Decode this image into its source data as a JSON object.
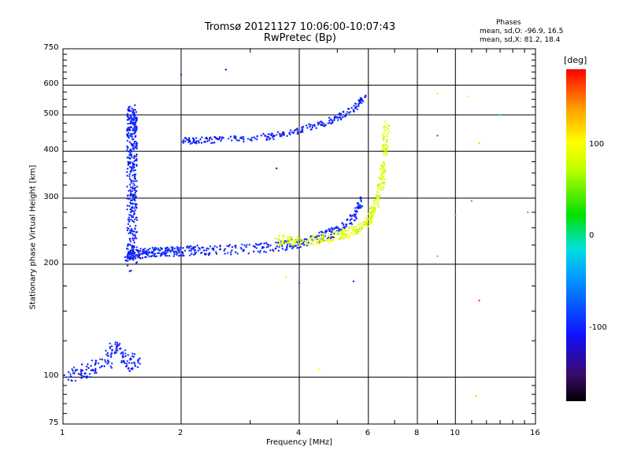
{
  "chart_data": {
    "type": "scatter",
    "title": "Tromsø 20121127 10:06:00-10:07:43",
    "subtitle": "RwPretec (Bp)",
    "xlabel": "Frequency [MHz]",
    "ylabel": "Stationary phase Virtual Height [km]",
    "x_scale": "log",
    "y_scale": "log",
    "xlim": [
      1,
      16
    ],
    "ylim": [
      75,
      750
    ],
    "x_ticks": [
      "1",
      "2",
      "4",
      "6",
      "8",
      "10",
      "16"
    ],
    "y_ticks": [
      "75",
      "100",
      "200",
      "300",
      "400",
      "500",
      "600",
      "750"
    ],
    "grid": true,
    "stats": {
      "heading": "Phases",
      "o_line": "mean, sd,O: -96.9, 16.5",
      "x_line": "mean, sd,X: 81.2, 18.4"
    },
    "colorbar": {
      "label": "[deg]",
      "range": [
        -180,
        180
      ],
      "ticks": [
        "100",
        "0",
        "-100"
      ]
    },
    "o_trace": {
      "phase": -100,
      "x": [
        1.45,
        1.5,
        1.6,
        1.7,
        1.8,
        1.9,
        2.0,
        2.2,
        2.5,
        3.0,
        3.5,
        4.0,
        4.5,
        5.0,
        5.5,
        5.8
      ],
      "y": [
        210,
        212,
        214,
        215,
        216,
        216,
        217,
        218,
        218,
        220,
        223,
        228,
        236,
        245,
        265,
        300
      ]
    },
    "o_upper_trace": {
      "phase": -100,
      "x": [
        2.0,
        2.2,
        2.5,
        3.0,
        3.5,
        4.0,
        4.5,
        5.0,
        5.5,
        5.9
      ],
      "y": [
        425,
        428,
        430,
        432,
        440,
        455,
        470,
        490,
        520,
        560
      ]
    },
    "x_trace": {
      "phase": 85,
      "x": [
        3.5,
        4.0,
        4.5,
        5.0,
        5.5,
        6.0,
        6.3,
        6.5,
        6.6,
        6.7
      ],
      "y": [
        232,
        230,
        233,
        238,
        245,
        260,
        290,
        330,
        400,
        480
      ]
    },
    "low_cluster": {
      "phase": -100,
      "x": [
        1.03,
        1.1,
        1.15,
        1.2,
        1.3,
        1.35,
        1.4,
        1.45,
        1.5,
        1.55
      ],
      "y": [
        100,
        102,
        104,
        106,
        110,
        120,
        115,
        112,
        110,
        108
      ]
    },
    "spread_f_column": {
      "phase": -100,
      "x": [
        1.5,
        1.5,
        1.5,
        1.5,
        1.5,
        1.5,
        1.5
      ],
      "y": [
        200,
        250,
        300,
        350,
        420,
        480,
        520
      ]
    },
    "scattered_points": [
      {
        "x": 9.0,
        "y": 570,
        "phase": 110
      },
      {
        "x": 10.8,
        "y": 560,
        "phase": 105
      },
      {
        "x": 13.0,
        "y": 500,
        "phase": -20
      },
      {
        "x": 9.0,
        "y": 440,
        "phase": -60
      },
      {
        "x": 11.5,
        "y": 420,
        "phase": 120
      },
      {
        "x": 10.0,
        "y": 270,
        "phase": 150
      },
      {
        "x": 11.0,
        "y": 295,
        "phase": -30
      },
      {
        "x": 15.3,
        "y": 275,
        "phase": 10
      },
      {
        "x": 9.0,
        "y": 210,
        "phase": 140
      },
      {
        "x": 11.5,
        "y": 160,
        "phase": 170
      },
      {
        "x": 11.3,
        "y": 89,
        "phase": 120
      },
      {
        "x": 2.0,
        "y": 640,
        "phase": -110
      },
      {
        "x": 2.6,
        "y": 660,
        "phase": -120
      },
      {
        "x": 3.5,
        "y": 360,
        "phase": -130
      },
      {
        "x": 3.7,
        "y": 185,
        "phase": 110
      },
      {
        "x": 4.0,
        "y": 178,
        "phase": -90
      },
      {
        "x": 5.5,
        "y": 180,
        "phase": -100
      },
      {
        "x": 6.0,
        "y": 108,
        "phase": 160
      },
      {
        "x": 4.5,
        "y": 105,
        "phase": 100
      }
    ]
  }
}
